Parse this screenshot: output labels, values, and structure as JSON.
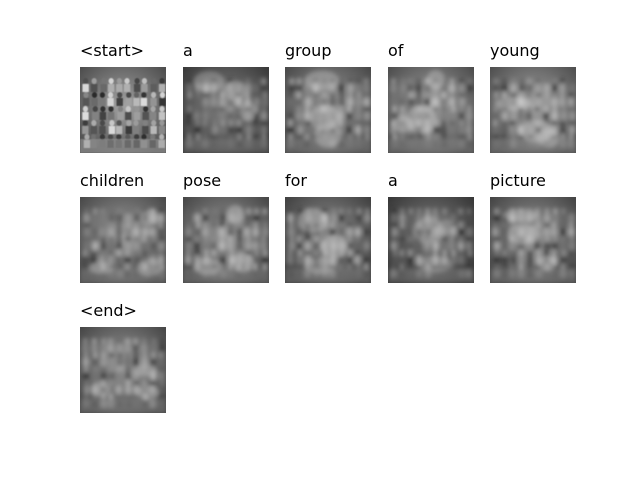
{
  "figure": {
    "cells": [
      {
        "word": "<start>",
        "image": "original-photo",
        "brightness": 0.6
      },
      {
        "word": "a",
        "image": "attention-map",
        "brightness": 0.35
      },
      {
        "word": "group",
        "image": "attention-map",
        "brightness": 0.55
      },
      {
        "word": "of",
        "image": "attention-map",
        "brightness": 0.6
      },
      {
        "word": "young",
        "image": "attention-map",
        "brightness": 0.62
      },
      {
        "word": "children",
        "image": "attention-map",
        "brightness": 0.55
      },
      {
        "word": "pose",
        "image": "attention-map",
        "brightness": 0.52
      },
      {
        "word": "for",
        "image": "attention-map",
        "brightness": 0.45
      },
      {
        "word": "a",
        "image": "attention-map",
        "brightness": 0.32
      },
      {
        "word": "picture",
        "image": "attention-map",
        "brightness": 0.5
      },
      {
        "word": "<end>",
        "image": "attention-map",
        "brightness": 0.52
      }
    ]
  }
}
